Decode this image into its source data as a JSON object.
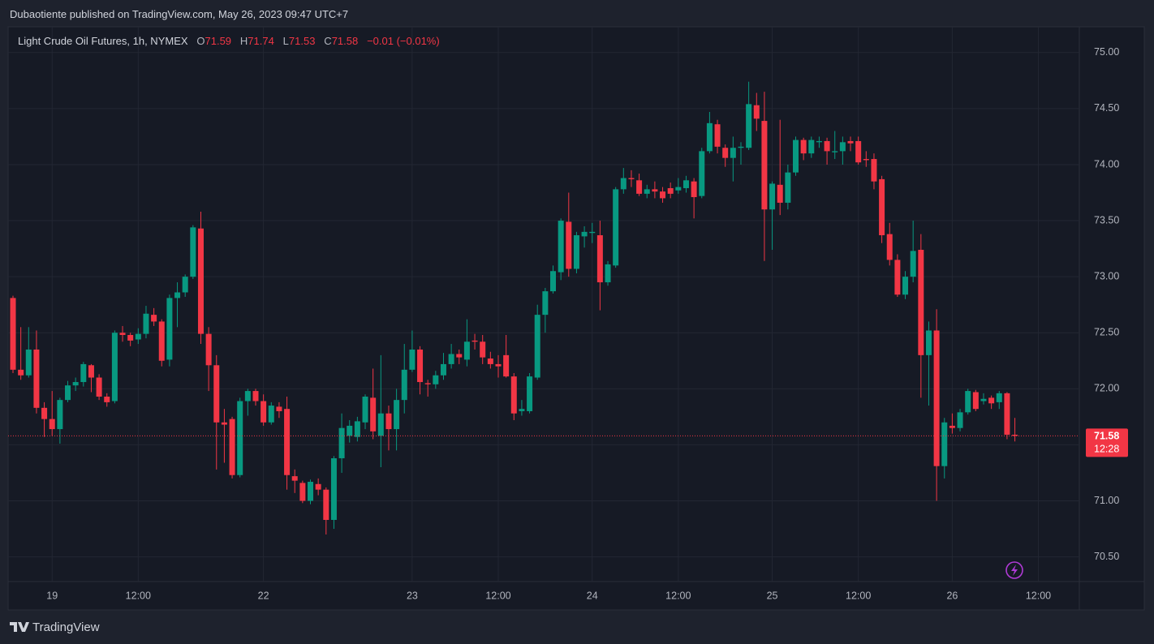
{
  "attribution": "Dubaotiente published on TradingView.com, May 26, 2023 09:47 UTC+7",
  "brand": "TradingView",
  "chart_data": {
    "type": "candlestick",
    "title": "Light Crude Oil Futures, 1h, NYMEX",
    "ohlc_letters": [
      "O",
      "H",
      "L",
      "C"
    ],
    "change": "−0.01 (−0.01%)",
    "countdown": "12:28",
    "up_color": "#089981",
    "down_color": "#f23645",
    "grid": true,
    "ylim": [
      70.28,
      75.23
    ],
    "yticks": [
      {
        "value": 70.5,
        "label": "70.50"
      },
      {
        "value": 71,
        "label": "71.00"
      },
      {
        "value": 71.5,
        "label": "71.50"
      },
      {
        "value": 72,
        "label": "72.00"
      },
      {
        "value": 72.5,
        "label": "72.50"
      },
      {
        "value": 73,
        "label": "73.00"
      },
      {
        "value": 73.5,
        "label": "73.50"
      },
      {
        "value": 74,
        "label": "74.00"
      },
      {
        "value": 74.5,
        "label": "74.50"
      },
      {
        "value": 75,
        "label": "75.00"
      }
    ],
    "categories": [
      null,
      null,
      null,
      null,
      null,
      "19",
      null,
      null,
      null,
      null,
      null,
      null,
      null,
      null,
      null,
      null,
      "12:00",
      null,
      null,
      null,
      null,
      null,
      null,
      null,
      null,
      null,
      null,
      null,
      null,
      null,
      null,
      null,
      "22",
      null,
      null,
      null,
      null,
      null,
      null,
      null,
      null,
      null,
      null,
      null,
      null,
      null,
      null,
      null,
      null,
      null,
      null,
      "23",
      null,
      null,
      null,
      null,
      null,
      null,
      null,
      null,
      null,
      null,
      "12:00",
      null,
      null,
      null,
      null,
      null,
      null,
      null,
      null,
      null,
      null,
      null,
      "24",
      null,
      null,
      null,
      null,
      null,
      null,
      null,
      null,
      null,
      null,
      "12:00",
      null,
      null,
      null,
      null,
      null,
      null,
      null,
      null,
      null,
      null,
      null,
      "25",
      null,
      null,
      null,
      null,
      null,
      null,
      null,
      null,
      null,
      null,
      "12:00",
      null,
      null,
      null,
      null,
      null,
      null,
      null,
      null,
      null,
      null,
      null,
      "26",
      null,
      null,
      null,
      null,
      null,
      null,
      null,
      null,
      null,
      null,
      "12:00"
    ],
    "open": [
      72.81,
      72.17,
      72.12,
      72.35,
      71.83,
      71.73,
      71.64,
      71.9,
      72.03,
      72.06,
      72.21,
      72.1,
      71.93,
      71.89,
      72.5,
      72.48,
      72.44,
      72.49,
      72.66,
      72.6,
      72.26,
      72.81,
      72.86,
      73.0,
      73.43,
      72.49,
      72.21,
      71.7,
      71.73,
      71.23,
      71.89,
      71.98,
      71.89,
      71.7,
      71.84,
      71.82,
      71.22,
      71.16,
      71.0,
      71.15,
      71.1,
      70.83,
      71.38,
      71.58,
      71.57,
      71.7,
      71.92,
      71.58,
      71.78,
      71.64,
      71.9,
      72.17,
      72.35,
      72.05,
      72.04,
      72.12,
      72.22,
      72.31,
      72.26,
      72.43,
      72.42,
      72.27,
      72.22,
      72.3,
      72.11,
      71.8,
      71.8,
      72.1,
      72.66,
      72.87,
      73.04,
      73.49,
      73.07,
      73.36,
      73.39,
      73.37,
      72.95,
      73.1,
      73.78,
      73.88,
      73.86,
      73.74,
      73.78,
      73.76,
      73.79,
      73.77,
      73.79,
      73.85,
      73.72,
      74.12,
      74.36,
      74.15,
      74.06,
      74.15,
      74.15,
      74.53,
      74.39,
      73.6,
      73.82,
      73.66,
      73.93,
      74.22,
      74.1,
      74.2,
      74.21,
      74.11,
      74.12,
      74.21,
      74.21,
      74.05,
      74.05,
      73.87,
      73.38,
      73.15,
      72.84,
      73.0,
      73.24,
      72.3,
      72.52,
      71.31,
      71.67,
      71.65,
      71.79,
      71.97,
      71.89,
      71.92,
      71.88,
      71.96,
      71.59,
      null,
      null,
      null
    ],
    "high": [
      72.83,
      72.55,
      72.55,
      72.52,
      71.88,
      71.98,
      71.92,
      72.07,
      72.1,
      72.24,
      72.22,
      72.13,
      71.96,
      72.52,
      72.56,
      72.5,
      72.54,
      72.74,
      72.72,
      72.62,
      72.84,
      72.95,
      73.02,
      73.46,
      73.58,
      72.55,
      72.3,
      71.82,
      71.75,
      71.92,
      72.0,
      72.0,
      71.95,
      71.88,
      71.88,
      71.93,
      71.28,
      71.18,
      71.19,
      71.2,
      71.12,
      71.4,
      71.78,
      71.72,
      71.75,
      71.95,
      72.18,
      72.3,
      71.85,
      72.0,
      72.4,
      72.52,
      72.38,
      72.08,
      72.16,
      72.32,
      72.4,
      72.35,
      72.62,
      72.49,
      72.48,
      72.33,
      72.3,
      72.48,
      72.14,
      71.9,
      72.14,
      72.75,
      72.9,
      73.1,
      73.52,
      73.75,
      73.4,
      73.45,
      73.48,
      73.5,
      73.14,
      73.8,
      73.97,
      73.95,
      73.92,
      73.82,
      73.85,
      73.8,
      73.84,
      73.88,
      73.9,
      73.88,
      74.15,
      74.47,
      74.4,
      74.18,
      74.25,
      74.2,
      74.74,
      74.64,
      74.65,
      73.85,
      74.4,
      74.0,
      74.25,
      74.24,
      74.25,
      74.25,
      74.24,
      74.3,
      74.25,
      74.25,
      74.25,
      74.12,
      74.1,
      73.9,
      73.48,
      73.2,
      73.05,
      73.5,
      73.38,
      72.6,
      72.71,
      71.74,
      71.78,
      71.82,
      72.0,
      71.99,
      71.96,
      71.94,
      71.98,
      71.97,
      71.74,
      null,
      null,
      null
    ],
    "low": [
      72.14,
      72.08,
      72.1,
      71.78,
      71.57,
      71.58,
      71.51,
      71.88,
      71.98,
      72.02,
      71.97,
      71.9,
      71.84,
      71.87,
      72.42,
      72.38,
      72.4,
      72.45,
      72.56,
      72.2,
      72.2,
      72.55,
      72.82,
      72.98,
      72.4,
      71.98,
      71.28,
      71.34,
      71.2,
      71.21,
      71.76,
      71.85,
      71.67,
      71.68,
      71.74,
      71.1,
      71.07,
      70.98,
      70.97,
      71.05,
      70.7,
      70.75,
      71.25,
      71.52,
      71.53,
      71.64,
      71.55,
      71.3,
      71.45,
      71.45,
      71.78,
      72.15,
      71.95,
      71.93,
      72.0,
      72.08,
      72.18,
      72.22,
      72.2,
      72.35,
      72.22,
      72.18,
      72.1,
      72.1,
      71.72,
      71.76,
      71.78,
      72.08,
      72.5,
      72.85,
      72.97,
      73.0,
      73.03,
      73.26,
      73.3,
      72.7,
      72.92,
      73.08,
      73.74,
      73.8,
      73.72,
      73.7,
      73.7,
      73.66,
      73.7,
      73.74,
      73.75,
      73.52,
      73.7,
      74.1,
      74.1,
      73.98,
      73.85,
      74.0,
      74.13,
      74.3,
      73.14,
      73.24,
      73.55,
      73.6,
      73.9,
      74.04,
      74.06,
      74.15,
      74.0,
      74.05,
      74.0,
      74.12,
      74.0,
      73.98,
      73.78,
      73.3,
      73.1,
      72.82,
      72.8,
      72.95,
      71.92,
      71.85,
      71.0,
      71.2,
      71.6,
      71.62,
      71.77,
      71.8,
      71.86,
      71.82,
      71.82,
      71.55,
      71.53,
      null,
      null,
      null
    ],
    "close": [
      72.17,
      72.12,
      72.35,
      71.83,
      71.73,
      71.64,
      71.9,
      72.03,
      72.06,
      72.22,
      72.1,
      71.93,
      71.88,
      72.5,
      72.48,
      72.43,
      72.49,
      72.67,
      72.6,
      72.25,
      72.81,
      72.86,
      73.0,
      73.44,
      72.49,
      72.21,
      71.7,
      71.68,
      71.23,
      71.89,
      71.98,
      71.89,
      71.7,
      71.85,
      71.8,
      71.23,
      71.18,
      71.0,
      71.17,
      71.1,
      70.83,
      71.38,
      71.65,
      71.67,
      71.71,
      71.93,
      71.62,
      71.78,
      71.64,
      71.9,
      72.17,
      72.35,
      72.06,
      72.04,
      72.12,
      72.22,
      72.31,
      72.28,
      72.42,
      72.42,
      72.28,
      72.22,
      72.2,
      72.11,
      71.78,
      71.82,
      72.11,
      72.66,
      72.87,
      73.05,
      73.5,
      73.07,
      73.37,
      73.4,
      73.4,
      72.95,
      73.11,
      73.78,
      73.88,
      73.87,
      73.74,
      73.78,
      73.76,
      73.7,
      73.74,
      73.8,
      73.86,
      73.71,
      74.12,
      74.37,
      74.16,
      74.06,
      74.15,
      74.16,
      74.54,
      74.41,
      73.6,
      73.83,
      73.66,
      73.93,
      74.22,
      74.1,
      74.22,
      74.21,
      74.12,
      74.12,
      74.2,
      74.19,
      74.02,
      74.04,
      73.85,
      73.37,
      73.15,
      72.84,
      73.0,
      73.23,
      72.3,
      72.52,
      71.31,
      71.7,
      71.65,
      71.79,
      71.98,
      71.82,
      71.91,
      71.87,
      71.96,
      71.59,
      71.58,
      null,
      null,
      null
    ]
  }
}
